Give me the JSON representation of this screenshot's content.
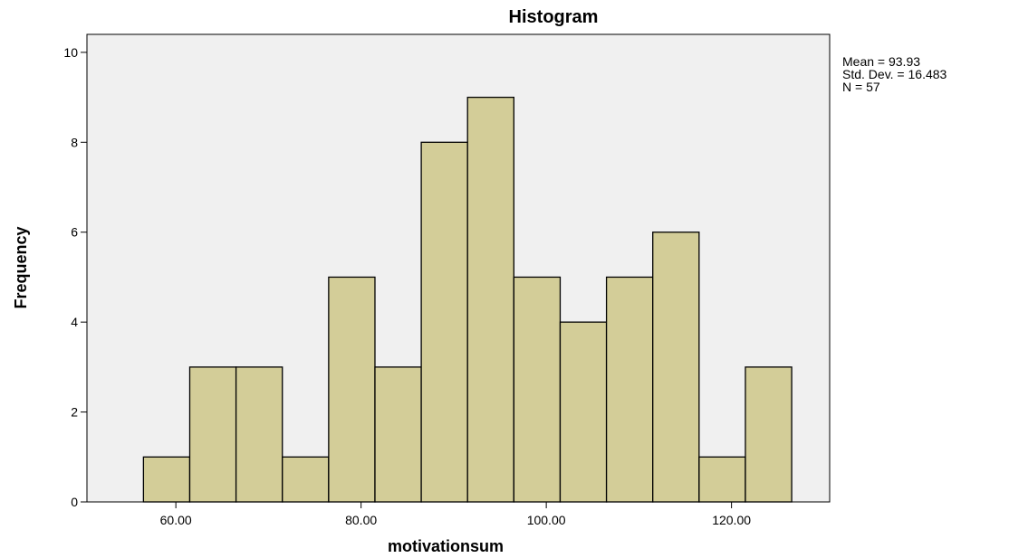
{
  "chart_data": {
    "type": "bar",
    "subtype": "histogram",
    "title": "Histogram",
    "xlabel": "motivationsum",
    "ylabel": "Frequency",
    "bin_width": 5,
    "bins": [
      {
        "start": 56.5,
        "end": 61.5,
        "count": 1
      },
      {
        "start": 61.5,
        "end": 66.5,
        "count": 3
      },
      {
        "start": 66.5,
        "end": 71.5,
        "count": 3
      },
      {
        "start": 71.5,
        "end": 76.5,
        "count": 1
      },
      {
        "start": 76.5,
        "end": 81.5,
        "count": 5
      },
      {
        "start": 81.5,
        "end": 86.5,
        "count": 3
      },
      {
        "start": 86.5,
        "end": 91.5,
        "count": 8
      },
      {
        "start": 91.5,
        "end": 96.5,
        "count": 9
      },
      {
        "start": 96.5,
        "end": 101.5,
        "count": 5
      },
      {
        "start": 101.5,
        "end": 106.5,
        "count": 4
      },
      {
        "start": 106.5,
        "end": 111.5,
        "count": 5
      },
      {
        "start": 111.5,
        "end": 116.5,
        "count": 6
      },
      {
        "start": 116.5,
        "end": 121.5,
        "count": 1
      },
      {
        "start": 121.5,
        "end": 126.5,
        "count": 3
      }
    ],
    "xlim": [
      50.4,
      130.6
    ],
    "ylim": [
      0,
      10.4
    ],
    "x_ticks": [
      {
        "value": 60,
        "label": "60.00"
      },
      {
        "value": 80,
        "label": "80.00"
      },
      {
        "value": 100,
        "label": "100.00"
      },
      {
        "value": 120,
        "label": "120.00"
      }
    ],
    "y_ticks": [
      {
        "value": 0,
        "label": "0"
      },
      {
        "value": 2,
        "label": "2"
      },
      {
        "value": 4,
        "label": "4"
      },
      {
        "value": 6,
        "label": "6"
      },
      {
        "value": 8,
        "label": "8"
      },
      {
        "value": 10,
        "label": "10"
      }
    ],
    "stats": [
      "Mean = 93.93",
      "Std. Dev. = 16.483",
      "N = 57"
    ],
    "grid": false,
    "legend": "none",
    "colors": {
      "bar_fill": "#D3CD98",
      "bar_stroke": "#000000",
      "plot_background": "#F0F0F0",
      "axis": "#000000"
    }
  }
}
